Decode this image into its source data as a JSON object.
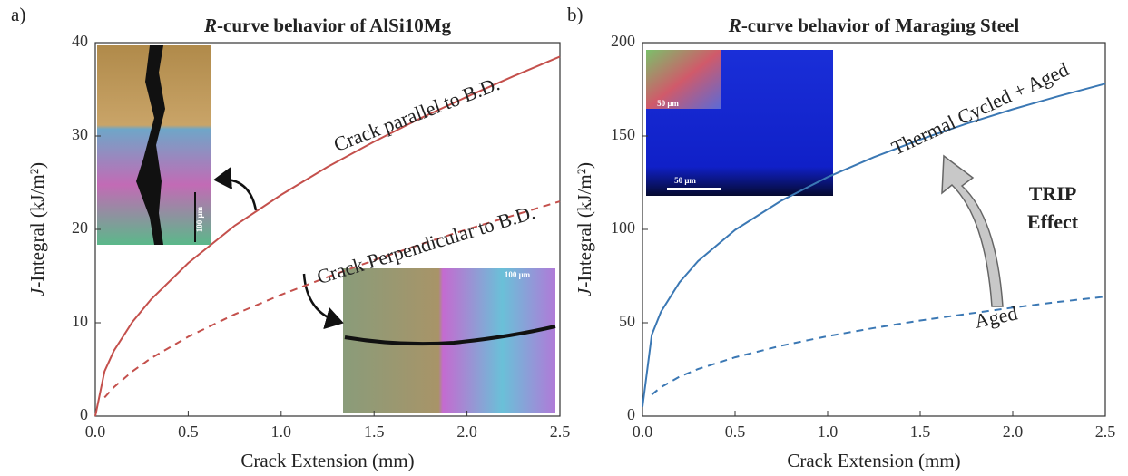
{
  "chart_data": [
    {
      "type": "line",
      "panel_label": "a)",
      "title": "R-curve behavior of AlSi10Mg",
      "xlabel": "Crack Extension (mm)",
      "ylabel": "J-Integral (kJ/m²)",
      "x": [
        0,
        0.05,
        0.1,
        0.2,
        0.3,
        0.5,
        0.75,
        1.0,
        1.25,
        1.5,
        1.75,
        2.0,
        2.25,
        2.5
      ],
      "xlim": [
        0,
        2.5
      ],
      "xticks": [
        {
          "value": 0,
          "label": "0.0"
        },
        0.5,
        {
          "value": 1,
          "label": "1.0"
        },
        1.5,
        {
          "value": 2,
          "label": "2.0"
        },
        2.5
      ],
      "ylim": [
        0,
        40
      ],
      "yticks": [
        0,
        10,
        20,
        30,
        40
      ],
      "series": [
        {
          "name": "Crack parallel to B.D.",
          "color": "#c4504c",
          "style": "solid",
          "values": [
            0,
            4.8,
            7.0,
            10.1,
            12.5,
            16.4,
            20.4,
            23.7,
            26.7,
            29.4,
            31.9,
            34.2,
            36.4,
            38.5
          ]
        },
        {
          "name": "Crack Perpendicular to B.D.",
          "color": "#c4504c",
          "style": "dashed",
          "values": [
            null,
            2.0,
            3.1,
            4.8,
            6.2,
            8.5,
            10.9,
            13.0,
            14.9,
            16.7,
            18.4,
            20.0,
            21.5,
            23.0
          ]
        }
      ],
      "annotations": [
        "100 μm",
        "100 μm"
      ]
    },
    {
      "type": "line",
      "panel_label": "b)",
      "title": "R-curve behavior of Maraging Steel",
      "xlabel": "Crack Extension (mm)",
      "ylabel": "J-Integral (kJ/m²)",
      "x": [
        0,
        0.05,
        0.1,
        0.2,
        0.3,
        0.5,
        0.75,
        1.0,
        1.25,
        1.5,
        1.75,
        2.0,
        2.25,
        2.5
      ],
      "xlim": [
        0,
        2.5
      ],
      "xticks": [
        {
          "value": 0,
          "label": "0.0"
        },
        0.5,
        {
          "value": 1,
          "label": "1.0"
        },
        1.5,
        {
          "value": 2,
          "label": "2.0"
        },
        2.5
      ],
      "ylim": [
        0,
        200
      ],
      "yticks": [
        0,
        50,
        100,
        150,
        200
      ],
      "series": [
        {
          "name": "Thermal Cycled + Aged",
          "color": "#3b78b4",
          "style": "solid",
          "values": [
            5,
            43.5,
            55.9,
            71.7,
            83.0,
            99.7,
            115.4,
            128,
            138.7,
            148.1,
            156.6,
            164.3,
            171.4,
            178.0
          ]
        },
        {
          "name": "Aged",
          "color": "#3b78b4",
          "style": "dashed",
          "values": [
            null,
            11.5,
            15.5,
            21.1,
            25.2,
            31.5,
            37.7,
            42.8,
            47.2,
            51.2,
            54.7,
            58.1,
            61.2,
            64.0
          ]
        }
      ],
      "annotations": [
        "TRIP",
        "Effect",
        "50 μm",
        "50 μm"
      ]
    }
  ]
}
